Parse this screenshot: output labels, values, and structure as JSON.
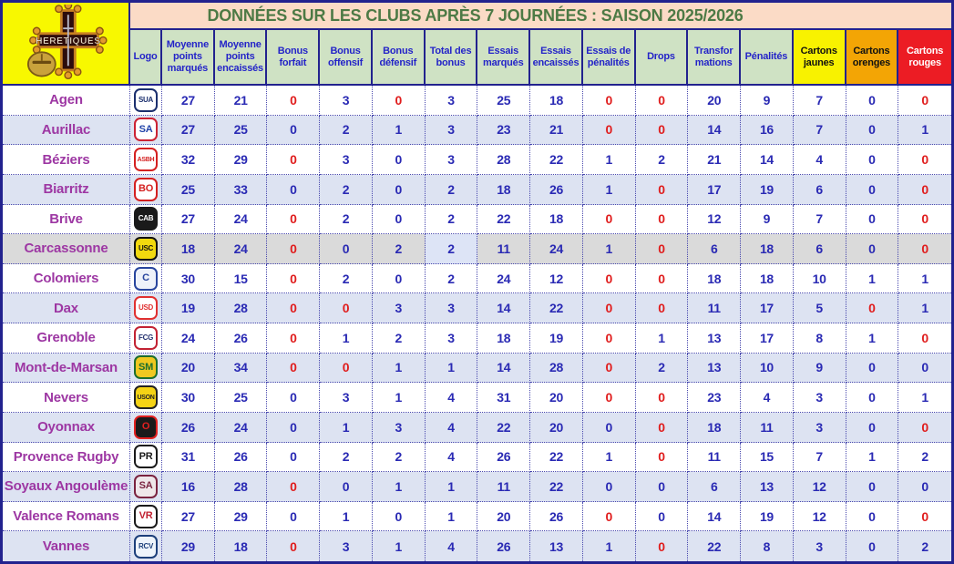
{
  "title": "DONNÉES SUR LES CLUBS APRÈS 7 JOURNÉES : SAISON 2025/2026",
  "site_logo": {
    "name": "Hérétiques",
    "text": "HERETIQUES"
  },
  "colors": {
    "title_bg": "#fbdbc6",
    "title_text": "#4d7a45",
    "header_bg": "#cfe2c4",
    "header_text": "#2424c8",
    "border_navy": "#22228e",
    "value_blue": "#2a2ab4",
    "value_red": "#e01d1d",
    "club_text": "#9d37a3",
    "row_alt": "#dde3f2",
    "row_gray": "#dadada",
    "logo_cell_yellow": "#f8f800",
    "cartons_jaunes_bg": "#f8f200",
    "cartons_orenges_bg": "#f3a505",
    "cartons_rouges_bg": "#ec1c24"
  },
  "chart_data": {
    "type": "table",
    "title": "DONNÉES SUR LES CLUBS APRÈS 7 JOURNÉES : SAISON 2025/2026",
    "columns": [
      {
        "label": "Logo"
      },
      {
        "label": "Moyenne points marqués"
      },
      {
        "label": "Moyenne points encaissés"
      },
      {
        "label": "Bonus forfait"
      },
      {
        "label": "Bonus offensif"
      },
      {
        "label": "Bonus défensif"
      },
      {
        "label": "Total des bonus"
      },
      {
        "label": "Essais marqués"
      },
      {
        "label": "Essais encaissés"
      },
      {
        "label": "Essais de pénalités"
      },
      {
        "label": "Drops"
      },
      {
        "label": "Transformations"
      },
      {
        "label": "Pénalités"
      },
      {
        "label": "Cartons jaunes",
        "bg": "#f8f200",
        "fg": "#111111"
      },
      {
        "label": "Cartons orenges",
        "bg": "#f3a505",
        "fg": "#111111"
      },
      {
        "label": "Cartons rouges",
        "bg": "#ec1c24",
        "fg": "#ffffff"
      }
    ],
    "rows": [
      {
        "club": "Agen",
        "logo": {
          "abbr": "SUA",
          "bg": "#ffffff",
          "fg": "#1b2f6e",
          "border": "#1b2f6e"
        },
        "values": [
          27,
          21,
          0,
          3,
          0,
          3,
          25,
          18,
          0,
          0,
          20,
          9,
          7,
          0,
          0
        ],
        "red_flags": [
          0,
          0,
          1,
          0,
          1,
          0,
          0,
          0,
          1,
          1,
          0,
          0,
          0,
          0,
          1
        ]
      },
      {
        "club": "Aurillac",
        "logo": {
          "abbr": "SA",
          "bg": "#ffffff",
          "fg": "#2244aa",
          "border": "#cc2233"
        },
        "values": [
          27,
          25,
          0,
          2,
          1,
          3,
          23,
          21,
          0,
          0,
          14,
          16,
          7,
          0,
          1
        ],
        "red_flags": [
          0,
          0,
          0,
          0,
          0,
          0,
          0,
          0,
          1,
          1,
          0,
          0,
          0,
          0,
          0
        ]
      },
      {
        "club": "Béziers",
        "logo": {
          "abbr": "ASBH",
          "bg": "#ffffff",
          "fg": "#d42020",
          "border": "#d42020"
        },
        "values": [
          32,
          29,
          0,
          3,
          0,
          3,
          28,
          22,
          1,
          2,
          21,
          14,
          4,
          0,
          0
        ],
        "red_flags": [
          0,
          0,
          1,
          0,
          0,
          0,
          0,
          0,
          0,
          0,
          0,
          0,
          0,
          0,
          1
        ]
      },
      {
        "club": "Biarritz",
        "logo": {
          "abbr": "BO",
          "bg": "#ffffff",
          "fg": "#d42020",
          "border": "#d42020"
        },
        "values": [
          25,
          33,
          0,
          2,
          0,
          2,
          18,
          26,
          1,
          0,
          17,
          19,
          6,
          0,
          0
        ],
        "red_flags": [
          0,
          0,
          0,
          0,
          0,
          0,
          0,
          0,
          0,
          1,
          0,
          0,
          0,
          0,
          1
        ]
      },
      {
        "club": "Brive",
        "logo": {
          "abbr": "CAB",
          "bg": "#1a1a1a",
          "fg": "#ffffff",
          "border": "#1a1a1a"
        },
        "values": [
          27,
          24,
          0,
          2,
          0,
          2,
          22,
          18,
          0,
          0,
          12,
          9,
          7,
          0,
          0
        ],
        "red_flags": [
          0,
          0,
          1,
          0,
          0,
          0,
          0,
          0,
          1,
          1,
          0,
          0,
          0,
          0,
          1
        ]
      },
      {
        "club": "Carcassonne",
        "logo": {
          "abbr": "USC",
          "bg": "#f2d90e",
          "fg": "#111111",
          "border": "#111111"
        },
        "values": [
          18,
          24,
          0,
          0,
          2,
          2,
          11,
          24,
          1,
          0,
          6,
          18,
          6,
          0,
          0
        ],
        "red_flags": [
          0,
          0,
          1,
          0,
          0,
          0,
          0,
          0,
          0,
          1,
          0,
          0,
          0,
          0,
          1
        ],
        "highlight": true
      },
      {
        "club": "Colomiers",
        "logo": {
          "abbr": "C",
          "bg": "#eef2fa",
          "fg": "#28459e",
          "border": "#28459e"
        },
        "values": [
          30,
          15,
          0,
          2,
          0,
          2,
          24,
          12,
          0,
          0,
          18,
          18,
          10,
          1,
          1
        ],
        "red_flags": [
          0,
          0,
          1,
          0,
          0,
          0,
          0,
          0,
          1,
          1,
          0,
          0,
          0,
          0,
          0
        ]
      },
      {
        "club": "Dax",
        "logo": {
          "abbr": "USD",
          "bg": "#ffffff",
          "fg": "#e03030",
          "border": "#e03030"
        },
        "values": [
          19,
          28,
          0,
          0,
          3,
          3,
          14,
          22,
          0,
          0,
          11,
          17,
          5,
          0,
          1
        ],
        "red_flags": [
          0,
          0,
          1,
          1,
          0,
          0,
          0,
          0,
          1,
          1,
          0,
          0,
          0,
          1,
          0
        ]
      },
      {
        "club": "Grenoble",
        "logo": {
          "abbr": "FCG",
          "bg": "#ffffff",
          "fg": "#23306e",
          "border": "#c22233"
        },
        "values": [
          24,
          26,
          0,
          1,
          2,
          3,
          18,
          19,
          0,
          1,
          13,
          17,
          8,
          1,
          0
        ],
        "red_flags": [
          0,
          0,
          1,
          0,
          0,
          0,
          0,
          0,
          1,
          0,
          0,
          0,
          0,
          0,
          1
        ]
      },
      {
        "club": "Mont-de-Marsan",
        "logo": {
          "abbr": "SM",
          "bg": "#f0c820",
          "fg": "#1d6e2e",
          "border": "#1d6e2e"
        },
        "values": [
          20,
          34,
          0,
          0,
          1,
          1,
          14,
          28,
          0,
          2,
          13,
          10,
          9,
          0,
          0
        ],
        "red_flags": [
          0,
          0,
          1,
          1,
          0,
          0,
          0,
          0,
          1,
          0,
          0,
          0,
          0,
          0,
          0
        ]
      },
      {
        "club": "Nevers",
        "logo": {
          "abbr": "USON",
          "bg": "#f5d315",
          "fg": "#222222",
          "border": "#222222"
        },
        "values": [
          30,
          25,
          0,
          3,
          1,
          4,
          31,
          20,
          0,
          0,
          23,
          4,
          3,
          0,
          1
        ],
        "red_flags": [
          0,
          0,
          0,
          0,
          0,
          0,
          0,
          0,
          1,
          1,
          0,
          0,
          0,
          0,
          0
        ]
      },
      {
        "club": "Oyonnax",
        "logo": {
          "abbr": "O",
          "bg": "#1a1a1a",
          "fg": "#e02020",
          "border": "#e02020"
        },
        "values": [
          26,
          24,
          0,
          1,
          3,
          4,
          22,
          20,
          0,
          0,
          18,
          11,
          3,
          0,
          0
        ],
        "red_flags": [
          0,
          0,
          0,
          0,
          0,
          0,
          0,
          0,
          0,
          1,
          0,
          0,
          0,
          0,
          1
        ]
      },
      {
        "club": "Provence Rugby",
        "logo": {
          "abbr": "PR",
          "bg": "#ffffff",
          "fg": "#1a1a1a",
          "border": "#1a1a1a"
        },
        "values": [
          31,
          26,
          0,
          2,
          2,
          4,
          26,
          22,
          1,
          0,
          11,
          15,
          7,
          1,
          2
        ],
        "red_flags": [
          0,
          0,
          0,
          0,
          0,
          0,
          0,
          0,
          0,
          1,
          0,
          0,
          0,
          0,
          0
        ]
      },
      {
        "club": "Soyaux Angoulème",
        "logo": {
          "abbr": "SA",
          "bg": "#efe7ea",
          "fg": "#7a2340",
          "border": "#7a2340"
        },
        "values": [
          16,
          28,
          0,
          0,
          1,
          1,
          11,
          22,
          0,
          0,
          6,
          13,
          12,
          0,
          0
        ],
        "red_flags": [
          0,
          0,
          1,
          0,
          0,
          0,
          0,
          0,
          0,
          0,
          0,
          0,
          0,
          0,
          0
        ]
      },
      {
        "club": "Valence Romans",
        "logo": {
          "abbr": "VR",
          "bg": "#ffffff",
          "fg": "#c02030",
          "border": "#1a1a1a"
        },
        "values": [
          27,
          29,
          0,
          1,
          0,
          1,
          20,
          26,
          0,
          0,
          14,
          19,
          12,
          0,
          0
        ],
        "red_flags": [
          0,
          0,
          0,
          0,
          0,
          0,
          0,
          0,
          1,
          0,
          0,
          0,
          0,
          0,
          1
        ]
      },
      {
        "club": "Vannes",
        "logo": {
          "abbr": "RCV",
          "bg": "#eef4fb",
          "fg": "#1c3f7a",
          "border": "#1c3f7a"
        },
        "values": [
          29,
          18,
          0,
          3,
          1,
          4,
          26,
          13,
          1,
          0,
          22,
          8,
          3,
          0,
          2
        ],
        "red_flags": [
          0,
          0,
          1,
          0,
          0,
          0,
          0,
          0,
          0,
          1,
          0,
          0,
          0,
          0,
          0
        ]
      }
    ]
  }
}
